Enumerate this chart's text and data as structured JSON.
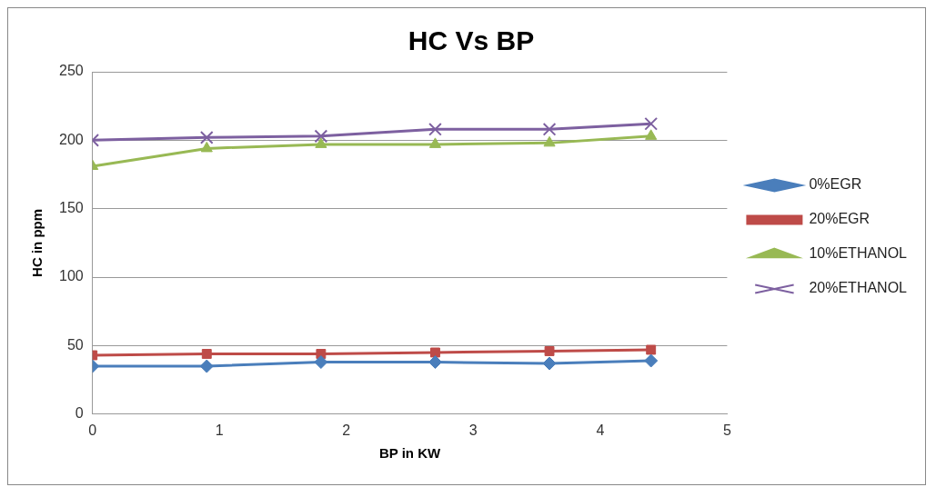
{
  "chart_data": {
    "type": "line",
    "title": "HC Vs BP",
    "xlabel": "BP in KW",
    "ylabel": "HC in ppm",
    "x": [
      0,
      0.9,
      1.8,
      2.7,
      3.6,
      4.4
    ],
    "xlim": [
      0,
      5
    ],
    "xticks": [
      0,
      1,
      2,
      3,
      4,
      5
    ],
    "ylim": [
      0,
      250
    ],
    "yticks": [
      0,
      50,
      100,
      150,
      200,
      250
    ],
    "grid": "y",
    "legend": "right",
    "series": [
      {
        "name": "0%EGR",
        "color": "#4a7ebb",
        "marker": "diamond",
        "values": [
          35,
          35,
          38,
          38,
          37,
          39
        ]
      },
      {
        "name": "20%EGR",
        "color": "#be4b48",
        "marker": "square",
        "values": [
          43,
          44,
          44,
          45,
          46,
          47
        ]
      },
      {
        "name": "10%ETHANOL",
        "color": "#98b954",
        "marker": "triangle",
        "values": [
          181,
          194,
          197,
          197,
          198,
          203
        ]
      },
      {
        "name": "20%ETHANOL",
        "color": "#7d60a0",
        "marker": "cross",
        "values": [
          200,
          202,
          203,
          208,
          208,
          212
        ]
      }
    ]
  }
}
